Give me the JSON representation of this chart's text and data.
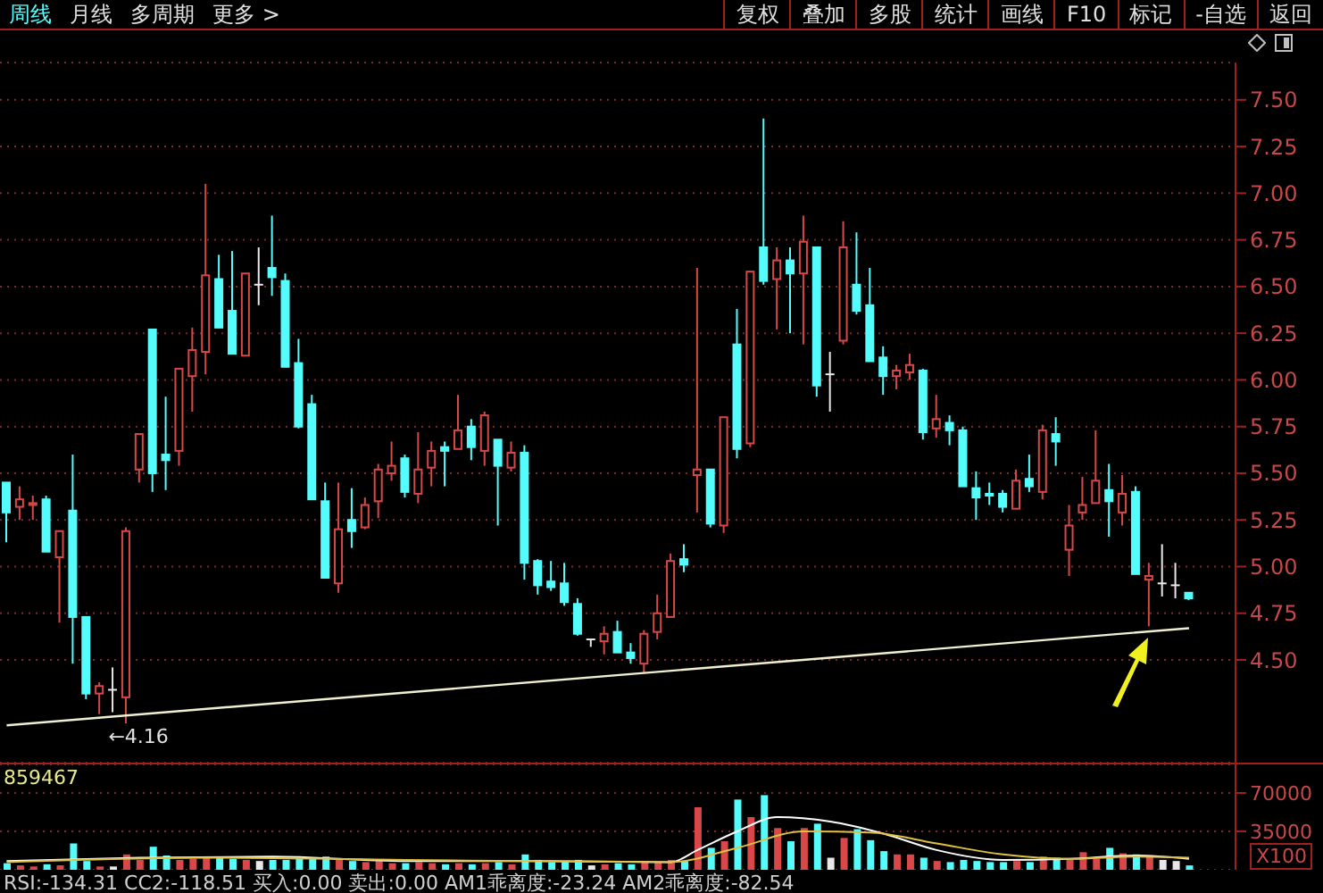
{
  "chart_data": [
    {
      "type": "other",
      "annotations": [
        "周线",
        "月线",
        "多周期",
        "更多 >"
      ]
    },
    {
      "type": "other",
      "annotations": [
        "复权",
        "叠加",
        "多股",
        "统计",
        "画线",
        "F10",
        "标记",
        "-自选",
        "返回"
      ]
    },
    {
      "type": "candlestick",
      "tick_labels": "y",
      "grid": "y",
      "categories": [
        null,
        null,
        null,
        null,
        null,
        null,
        null,
        null,
        null,
        null,
        null,
        null,
        null,
        null,
        null,
        null,
        null,
        null,
        null,
        null,
        null,
        null,
        null,
        null,
        null,
        null,
        null,
        null,
        null,
        null,
        null,
        null,
        null,
        null,
        null,
        null,
        null,
        null,
        null,
        null,
        null,
        null,
        null,
        null,
        null,
        null,
        null,
        null,
        null,
        null,
        null,
        null,
        null,
        null,
        null,
        null,
        null,
        null,
        null,
        null,
        null,
        null,
        null,
        null,
        null,
        null,
        null,
        null,
        null,
        null,
        null,
        null,
        null,
        null,
        null,
        null,
        null,
        null,
        null,
        null,
        null,
        null,
        null,
        null,
        null,
        null,
        null,
        null,
        null,
        null
      ],
      "ohlc": [
        [
          5.45,
          5.45,
          5.13,
          5.29
        ],
        [
          5.32,
          5.43,
          5.25,
          5.36
        ],
        [
          5.33,
          5.38,
          5.25,
          5.34
        ],
        [
          5.36,
          5.38,
          5.08,
          5.08
        ],
        [
          5.05,
          5.19,
          4.7,
          5.19
        ],
        [
          5.3,
          5.6,
          4.48,
          4.73
        ],
        [
          4.73,
          4.73,
          4.29,
          4.32
        ],
        [
          4.32,
          4.38,
          4.21,
          4.36
        ],
        [
          4.34,
          4.46,
          4.22,
          4.34
        ],
        [
          4.3,
          5.21,
          4.16,
          5.19
        ],
        [
          5.52,
          5.71,
          5.45,
          5.71
        ],
        [
          6.27,
          6.27,
          5.4,
          5.5
        ],
        [
          5.6,
          5.91,
          5.41,
          5.57
        ],
        [
          5.62,
          6.06,
          5.54,
          6.06
        ],
        [
          6.02,
          6.28,
          5.83,
          6.16
        ],
        [
          6.15,
          7.05,
          6.03,
          6.56
        ],
        [
          6.54,
          6.67,
          6.28,
          6.28
        ],
        [
          6.37,
          6.69,
          6.14,
          6.14
        ],
        [
          6.13,
          6.57,
          6.13,
          6.57
        ],
        [
          6.51,
          6.71,
          6.4,
          6.51
        ],
        [
          6.6,
          6.88,
          6.45,
          6.55
        ],
        [
          6.53,
          6.57,
          6.07,
          6.07
        ],
        [
          6.09,
          6.22,
          5.74,
          5.75
        ],
        [
          5.87,
          5.92,
          5.36,
          5.36
        ],
        [
          5.35,
          5.45,
          4.94,
          4.94
        ],
        [
          4.91,
          5.45,
          4.86,
          5.2
        ],
        [
          5.25,
          5.42,
          5.1,
          5.19
        ],
        [
          5.21,
          5.37,
          5.2,
          5.33
        ],
        [
          5.35,
          5.55,
          5.26,
          5.52
        ],
        [
          5.5,
          5.67,
          5.46,
          5.54
        ],
        [
          5.58,
          5.6,
          5.37,
          5.4
        ],
        [
          5.39,
          5.72,
          5.34,
          5.52
        ],
        [
          5.53,
          5.67,
          5.43,
          5.62
        ],
        [
          5.64,
          5.67,
          5.43,
          5.62
        ],
        [
          5.63,
          5.92,
          5.63,
          5.73
        ],
        [
          5.75,
          5.79,
          5.57,
          5.64
        ],
        [
          5.62,
          5.83,
          5.54,
          5.81
        ],
        [
          5.68,
          5.68,
          5.22,
          5.54
        ],
        [
          5.53,
          5.67,
          5.51,
          5.61
        ],
        [
          5.61,
          5.65,
          4.93,
          5.02
        ],
        [
          5.03,
          5.04,
          4.85,
          4.9
        ],
        [
          4.92,
          5.03,
          4.87,
          4.89
        ],
        [
          4.91,
          5.02,
          4.79,
          4.81
        ],
        [
          4.8,
          4.83,
          4.63,
          4.64
        ],
        [
          4.61,
          4.61,
          4.57,
          4.61
        ],
        [
          4.6,
          4.68,
          4.53,
          4.64
        ],
        [
          4.65,
          4.71,
          4.54,
          4.54
        ],
        [
          4.54,
          4.59,
          4.48,
          4.51
        ],
        [
          4.48,
          4.66,
          4.43,
          4.64
        ],
        [
          4.65,
          4.85,
          4.61,
          4.75
        ],
        [
          4.73,
          5.07,
          4.73,
          5.03
        ],
        [
          5.04,
          5.12,
          4.97,
          5.01
        ],
        [
          5.49,
          6.6,
          5.29,
          5.52
        ],
        [
          5.52,
          5.52,
          5.21,
          5.23
        ],
        [
          5.22,
          5.8,
          5.18,
          5.8
        ],
        [
          6.19,
          6.38,
          5.58,
          5.63
        ],
        [
          5.66,
          6.58,
          5.64,
          6.58
        ],
        [
          6.71,
          7.4,
          6.51,
          6.53
        ],
        [
          6.54,
          6.71,
          6.27,
          6.64
        ],
        [
          6.64,
          6.71,
          6.25,
          6.57
        ],
        [
          6.57,
          6.88,
          6.19,
          6.74
        ],
        [
          6.71,
          6.71,
          5.91,
          5.97
        ],
        [
          6.03,
          6.15,
          5.83,
          6.03
        ],
        [
          6.21,
          6.85,
          6.19,
          6.71
        ],
        [
          6.51,
          6.79,
          6.35,
          6.37
        ],
        [
          6.4,
          6.6,
          6.1,
          6.1
        ],
        [
          6.12,
          6.18,
          5.92,
          6.02
        ],
        [
          6.02,
          6.08,
          5.95,
          6.05
        ],
        [
          6.04,
          6.14,
          6.0,
          6.08
        ],
        [
          6.05,
          6.06,
          5.68,
          5.72
        ],
        [
          5.74,
          5.92,
          5.69,
          5.79
        ],
        [
          5.77,
          5.81,
          5.65,
          5.73
        ],
        [
          5.73,
          5.75,
          5.43,
          5.43
        ],
        [
          5.42,
          5.51,
          5.25,
          5.37
        ],
        [
          5.39,
          5.45,
          5.33,
          5.38
        ],
        [
          5.39,
          5.41,
          5.29,
          5.32
        ],
        [
          5.31,
          5.52,
          5.31,
          5.46
        ],
        [
          5.47,
          5.6,
          5.4,
          5.43
        ],
        [
          5.4,
          5.76,
          5.36,
          5.73
        ],
        [
          5.71,
          5.8,
          5.54,
          5.67
        ],
        [
          5.09,
          5.33,
          4.95,
          5.22
        ],
        [
          5.29,
          5.48,
          5.25,
          5.33
        ],
        [
          5.34,
          5.73,
          5.34,
          5.46
        ],
        [
          5.41,
          5.55,
          5.16,
          5.35
        ],
        [
          5.29,
          5.49,
          5.22,
          5.39
        ],
        [
          5.4,
          5.43,
          4.96,
          4.96
        ],
        [
          4.93,
          5.02,
          4.68,
          4.95
        ],
        [
          4.91,
          5.12,
          4.84,
          4.91
        ],
        [
          4.9,
          5.02,
          4.83,
          4.9
        ],
        [
          4.86,
          4.86,
          4.82,
          4.83
        ]
      ],
      "colors": [
        "#54fcfc",
        "#d84848",
        "#d84848",
        "#54fcfc",
        "#d84848",
        "#54fcfc",
        "#54fcfc",
        "#d84848",
        "#e8e8e8",
        "#d84848",
        "#d84848",
        "#54fcfc",
        "#54fcfc",
        "#d84848",
        "#d84848",
        "#d84848",
        "#54fcfc",
        "#54fcfc",
        "#d84848",
        "#e8e8e8",
        "#54fcfc",
        "#54fcfc",
        "#54fcfc",
        "#54fcfc",
        "#54fcfc",
        "#d84848",
        "#54fcfc",
        "#d84848",
        "#d84848",
        "#d84848",
        "#54fcfc",
        "#d84848",
        "#d84848",
        "#54fcfc",
        "#d84848",
        "#54fcfc",
        "#d84848",
        "#54fcfc",
        "#d84848",
        "#54fcfc",
        "#54fcfc",
        "#54fcfc",
        "#54fcfc",
        "#54fcfc",
        "#e8e8e8",
        "#d84848",
        "#54fcfc",
        "#54fcfc",
        "#d84848",
        "#d84848",
        "#d84848",
        "#54fcfc",
        "#d84848",
        "#54fcfc",
        "#d84848",
        "#54fcfc",
        "#d84848",
        "#54fcfc",
        "#d84848",
        "#54fcfc",
        "#d84848",
        "#54fcfc",
        "#e8e8e8",
        "#d84848",
        "#54fcfc",
        "#54fcfc",
        "#54fcfc",
        "#d84848",
        "#d84848",
        "#54fcfc",
        "#d84848",
        "#54fcfc",
        "#54fcfc",
        "#54fcfc",
        "#54fcfc",
        "#54fcfc",
        "#d84848",
        "#54fcfc",
        "#d84848",
        "#54fcfc",
        "#d84848",
        "#d84848",
        "#d84848",
        "#54fcfc",
        "#d84848",
        "#54fcfc",
        "#d84848",
        "#e8e8e8",
        "#e8e8e8",
        "#54fcfc"
      ],
      "series": [
        {
          "type": "line",
          "color": "#f0f0d0",
          "values": [
            4.15,
            null,
            null,
            null,
            null,
            null,
            null,
            null,
            null,
            null,
            null,
            null,
            null,
            null,
            null,
            null,
            null,
            null,
            null,
            null,
            null,
            null,
            null,
            null,
            null,
            null,
            null,
            null,
            null,
            null,
            null,
            null,
            null,
            null,
            null,
            null,
            null,
            null,
            null,
            null,
            null,
            null,
            null,
            null,
            null,
            null,
            null,
            null,
            null,
            null,
            null,
            null,
            null,
            null,
            null,
            null,
            null,
            null,
            null,
            null,
            null,
            null,
            null,
            null,
            null,
            null,
            null,
            null,
            null,
            null,
            null,
            null,
            null,
            null,
            null,
            null,
            null,
            null,
            null,
            null,
            null,
            null,
            null,
            null,
            null,
            null,
            null,
            null,
            null,
            4.67
          ]
        }
      ],
      "ylim": [
        3.95,
        7.7
      ],
      "yticks": [
        {
          "value": 4.5,
          "label": "4.50"
        },
        {
          "value": 4.75,
          "label": "4.75"
        },
        {
          "value": 5,
          "label": "5.00"
        },
        {
          "value": 5.25,
          "label": "5.25"
        },
        {
          "value": 5.5,
          "label": "5.50"
        },
        {
          "value": 5.75,
          "label": "5.75"
        },
        {
          "value": 6,
          "label": "6.00"
        },
        {
          "value": 6.25,
          "label": "6.25"
        },
        {
          "value": 6.5,
          "label": "6.50"
        },
        {
          "value": 6.75,
          "label": "6.75"
        },
        {
          "value": 7,
          "label": "7.00"
        },
        {
          "value": 7.25,
          "label": "7.25"
        },
        {
          "value": 7.5,
          "label": "7.50"
        }
      ],
      "annotations": [
        {
          "text": "←4.16",
          "y": 4.16
        }
      ]
    },
    {
      "type": "bar",
      "tick_labels": "y",
      "grid": "y",
      "ylabel": "X100",
      "categories": [
        null,
        null,
        null,
        null,
        null,
        null,
        null,
        null,
        null,
        null,
        null,
        null,
        null,
        null,
        null,
        null,
        null,
        null,
        null,
        null,
        null,
        null,
        null,
        null,
        null,
        null,
        null,
        null,
        null,
        null,
        null,
        null,
        null,
        null,
        null,
        null,
        null,
        null,
        null,
        null,
        null,
        null,
        null,
        null,
        null,
        null,
        null,
        null,
        null,
        null,
        null,
        null,
        null,
        null,
        null,
        null,
        null,
        null,
        null,
        null,
        null,
        null,
        null,
        null,
        null,
        null,
        null,
        null,
        null,
        null,
        null,
        null,
        null,
        null,
        null,
        null,
        null,
        null,
        null,
        null,
        null,
        null,
        null,
        null,
        null,
        null,
        null,
        null,
        null,
        null
      ],
      "series": [
        {
          "type": "bar",
          "values": [
            6000,
            4000,
            3000,
            5000,
            4000,
            24000,
            8000,
            3000,
            3000,
            14000,
            9000,
            21000,
            13000,
            9000,
            10000,
            12000,
            11000,
            10000,
            9000,
            8000,
            9000,
            9000,
            10000,
            11000,
            12000,
            9000,
            8000,
            7000,
            8000,
            6000,
            6000,
            7000,
            6000,
            5000,
            6000,
            5000,
            6000,
            7000,
            5000,
            14000,
            9000,
            7000,
            8000,
            9000,
            4000,
            5000,
            6000,
            5000,
            7000,
            7000,
            9000,
            8000,
            57000,
            20000,
            26000,
            64000,
            48000,
            68000,
            38000,
            26000,
            38000,
            42000,
            11000,
            29000,
            37000,
            27000,
            17000,
            14000,
            14000,
            11000,
            8000,
            7000,
            9000,
            8000,
            7000,
            7000,
            8000,
            7000,
            12000,
            11000,
            9000,
            16000,
            10000,
            20000,
            15000,
            14000,
            13000,
            9000,
            8000,
            4000
          ],
          "colors": [
            "#54fcfc",
            "#d84848",
            "#d84848",
            "#54fcfc",
            "#d84848",
            "#54fcfc",
            "#54fcfc",
            "#d84848",
            "#e8e8e8",
            "#d84848",
            "#d84848",
            "#54fcfc",
            "#54fcfc",
            "#d84848",
            "#d84848",
            "#d84848",
            "#54fcfc",
            "#54fcfc",
            "#d84848",
            "#e8e8e8",
            "#54fcfc",
            "#54fcfc",
            "#54fcfc",
            "#54fcfc",
            "#54fcfc",
            "#d84848",
            "#54fcfc",
            "#d84848",
            "#d84848",
            "#d84848",
            "#54fcfc",
            "#d84848",
            "#d84848",
            "#54fcfc",
            "#d84848",
            "#54fcfc",
            "#d84848",
            "#54fcfc",
            "#d84848",
            "#54fcfc",
            "#54fcfc",
            "#54fcfc",
            "#54fcfc",
            "#54fcfc",
            "#e8e8e8",
            "#d84848",
            "#54fcfc",
            "#54fcfc",
            "#d84848",
            "#d84848",
            "#d84848",
            "#54fcfc",
            "#d84848",
            "#54fcfc",
            "#d84848",
            "#54fcfc",
            "#d84848",
            "#54fcfc",
            "#d84848",
            "#54fcfc",
            "#d84848",
            "#54fcfc",
            "#e8e8e8",
            "#d84848",
            "#54fcfc",
            "#54fcfc",
            "#54fcfc",
            "#d84848",
            "#d84848",
            "#54fcfc",
            "#d84848",
            "#54fcfc",
            "#54fcfc",
            "#54fcfc",
            "#54fcfc",
            "#54fcfc",
            "#d84848",
            "#54fcfc",
            "#d84848",
            "#54fcfc",
            "#d84848",
            "#d84848",
            "#d84848",
            "#54fcfc",
            "#d84848",
            "#54fcfc",
            "#d84848",
            "#e8e8e8",
            "#e8e8e8",
            "#54fcfc"
          ]
        },
        {
          "type": "line",
          "color": "#ffffff",
          "values": [
            8000,
            null,
            null,
            null,
            null,
            null,
            null,
            null,
            null,
            null,
            11000,
            null,
            null,
            null,
            null,
            null,
            null,
            null,
            null,
            null,
            12000,
            null,
            null,
            null,
            null,
            null,
            null,
            null,
            null,
            null,
            8000,
            null,
            null,
            null,
            null,
            null,
            null,
            null,
            null,
            null,
            8000,
            null,
            null,
            null,
            null,
            null,
            null,
            null,
            null,
            null,
            7000,
            null,
            18000,
            null,
            null,
            35000,
            null,
            null,
            48000,
            null,
            null,
            null,
            44000,
            null,
            null,
            null,
            33000,
            null,
            null,
            null,
            18000,
            null,
            null,
            null,
            null,
            9000,
            null,
            null,
            null,
            null,
            10000,
            null,
            null,
            null,
            null,
            13000,
            null,
            null,
            null,
            10000
          ]
        },
        {
          "type": "line",
          "color": "#e0c040",
          "values": [
            7000,
            null,
            null,
            null,
            null,
            null,
            null,
            null,
            null,
            null,
            null,
            null,
            null,
            null,
            null,
            11000,
            null,
            null,
            null,
            null,
            null,
            null,
            null,
            null,
            null,
            null,
            null,
            null,
            null,
            null,
            9000,
            null,
            null,
            null,
            null,
            null,
            null,
            null,
            null,
            null,
            null,
            null,
            null,
            null,
            null,
            null,
            null,
            null,
            null,
            null,
            7000,
            null,
            null,
            null,
            null,
            20000,
            null,
            null,
            null,
            null,
            35000,
            null,
            null,
            null,
            null,
            34000,
            null,
            null,
            null,
            null,
            24000,
            null,
            null,
            null,
            null,
            14000,
            null,
            null,
            null,
            null,
            10000,
            null,
            null,
            null,
            null,
            12000,
            null,
            null,
            null,
            11000
          ]
        }
      ],
      "ylim": [
        0,
        96000
      ],
      "yticks": [
        35000,
        70000
      ],
      "annotations": [
        "859467",
        "RSI:-134.31  CC2:-118.51  买入:0.00  卖出:0.00  AM1乖离度:-23.24  AM2乖离度:-82.54"
      ]
    }
  ]
}
